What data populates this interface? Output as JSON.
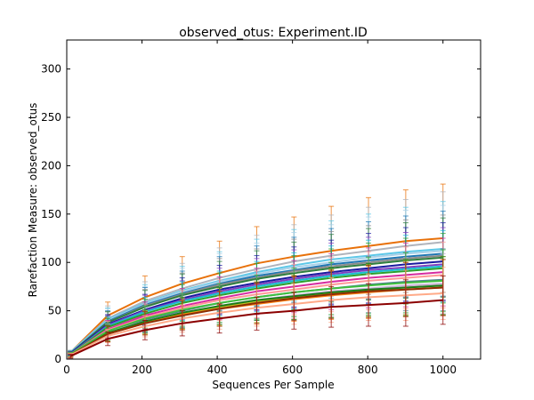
{
  "chart_data": {
    "type": "line",
    "title": "observed_otus: Experiment.ID",
    "xlabel": "Sequences Per Sample",
    "ylabel": "Rarefaction Measure: observed_otus",
    "xlim": [
      0,
      1100
    ],
    "ylim": [
      0,
      330
    ],
    "x_ticks": [
      0,
      200,
      400,
      600,
      800,
      1000
    ],
    "y_ticks": [
      0,
      50,
      100,
      150,
      200,
      250,
      300
    ],
    "grid": false,
    "legend": "none",
    "x": [
      10,
      109,
      208,
      307,
      406,
      505,
      604,
      703,
      802,
      901,
      1000
    ],
    "series": [
      {
        "color": "#e8710a",
        "values": [
          7,
          45,
          64,
          78,
          89,
          99,
          106,
          112,
          117,
          122,
          125
        ],
        "err": [
          2,
          14,
          22,
          28,
          33,
          38,
          41,
          46,
          50,
          53,
          56
        ]
      },
      {
        "color": "#b0b4bc",
        "values": [
          7,
          42,
          60,
          73,
          84,
          93,
          101,
          107,
          112,
          117,
          121
        ],
        "err": [
          2,
          13,
          20,
          26,
          31,
          35,
          38,
          42,
          45,
          48,
          52
        ]
      },
      {
        "color": "#5ec8e8",
        "values": [
          7,
          41,
          58,
          71,
          81,
          90,
          97,
          103,
          107,
          111,
          114
        ],
        "err": [
          2,
          12,
          19,
          25,
          30,
          34,
          37,
          40,
          43,
          46,
          49
        ]
      },
      {
        "color": "#a8d0e8",
        "values": [
          6,
          40,
          57,
          70,
          80,
          88,
          95,
          100,
          105,
          109,
          112
        ],
        "err": [
          2,
          12,
          18,
          24,
          29,
          32,
          36,
          39,
          42,
          45,
          47
        ]
      },
      {
        "color": "#1f77b4",
        "values": [
          6,
          39,
          56,
          68,
          78,
          86,
          92,
          98,
          102,
          106,
          109
        ],
        "err": [
          2,
          11,
          18,
          23,
          28,
          31,
          34,
          37,
          40,
          42,
          44
        ]
      },
      {
        "color": "#8a8a8a",
        "values": [
          6,
          38,
          55,
          67,
          77,
          84,
          91,
          96,
          100,
          104,
          107
        ],
        "err": [
          2,
          11,
          17,
          22,
          27,
          30,
          33,
          36,
          38,
          40,
          42
        ]
      },
      {
        "color": "#2f7f3f",
        "values": [
          6,
          38,
          54,
          66,
          75,
          83,
          89,
          94,
          98,
          102,
          105
        ],
        "err": [
          2,
          11,
          17,
          22,
          26,
          29,
          32,
          35,
          37,
          39,
          41
        ]
      },
      {
        "color": "#1a1aa0",
        "values": [
          6,
          36,
          51,
          63,
          72,
          79,
          85,
          90,
          94,
          98,
          101
        ],
        "err": [
          2,
          10,
          16,
          21,
          25,
          28,
          31,
          33,
          36,
          38,
          40
        ]
      },
      {
        "color": "#7f3fbf",
        "values": [
          5,
          35,
          50,
          61,
          70,
          77,
          83,
          88,
          92,
          95,
          98
        ],
        "err": [
          2,
          10,
          16,
          20,
          24,
          27,
          30,
          32,
          34,
          36,
          38
        ]
      },
      {
        "color": "#17becf",
        "values": [
          5,
          34,
          49,
          60,
          68,
          75,
          81,
          86,
          90,
          93,
          96
        ],
        "err": [
          2,
          10,
          15,
          20,
          23,
          26,
          29,
          31,
          33,
          35,
          37
        ]
      },
      {
        "color": "#2ca02c",
        "values": [
          5,
          33,
          47,
          58,
          66,
          73,
          79,
          84,
          88,
          91,
          94
        ],
        "err": [
          2,
          9,
          15,
          19,
          23,
          26,
          28,
          30,
          32,
          34,
          36
        ]
      },
      {
        "color": "#d62ba0",
        "values": [
          5,
          31,
          45,
          55,
          63,
          70,
          75,
          80,
          84,
          87,
          90
        ],
        "err": [
          2,
          9,
          14,
          18,
          22,
          24,
          27,
          29,
          31,
          33,
          35
        ]
      },
      {
        "color": "#ff9896",
        "values": [
          5,
          30,
          43,
          53,
          61,
          67,
          72,
          77,
          81,
          84,
          87
        ],
        "err": [
          2,
          9,
          14,
          18,
          21,
          24,
          26,
          28,
          30,
          32,
          34
        ]
      },
      {
        "color": "#4f7f8f",
        "values": [
          5,
          29,
          41,
          50,
          58,
          64,
          69,
          73,
          77,
          80,
          82
        ],
        "err": [
          2,
          8,
          13,
          17,
          20,
          22,
          25,
          27,
          29,
          30,
          32
        ]
      },
      {
        "color": "#c5b0d5",
        "values": [
          4,
          28,
          39,
          48,
          55,
          61,
          66,
          70,
          73,
          76,
          78
        ],
        "err": [
          2,
          8,
          12,
          16,
          19,
          21,
          24,
          26,
          28,
          29,
          31
        ]
      },
      {
        "color": "#3fbf3f",
        "values": [
          5,
          29,
          42,
          51,
          58,
          64,
          69,
          73,
          76,
          79,
          81
        ],
        "err": [
          2,
          8,
          13,
          17,
          20,
          23,
          25,
          27,
          29,
          31,
          32
        ]
      },
      {
        "color": "#bcbd22",
        "values": [
          4,
          27,
          38,
          47,
          54,
          59,
          64,
          68,
          71,
          74,
          76
        ],
        "err": [
          2,
          8,
          12,
          16,
          19,
          21,
          23,
          25,
          27,
          28,
          30
        ]
      },
      {
        "color": "#1a7a1a",
        "values": [
          4,
          27,
          39,
          48,
          55,
          61,
          65,
          69,
          72,
          74,
          76
        ],
        "err": [
          2,
          8,
          12,
          16,
          19,
          21,
          24,
          26,
          27,
          29,
          30
        ]
      },
      {
        "color": "#ff7f0e",
        "values": [
          4,
          26,
          37,
          46,
          52,
          57,
          62,
          66,
          69,
          72,
          74
        ],
        "err": [
          2,
          8,
          12,
          15,
          18,
          21,
          23,
          25,
          27,
          28,
          29
        ]
      },
      {
        "color": "#8c2d04",
        "values": [
          4,
          26,
          37,
          45,
          52,
          58,
          63,
          67,
          70,
          72,
          74
        ],
        "err": [
          2,
          8,
          12,
          15,
          18,
          21,
          23,
          25,
          27,
          28,
          29
        ]
      },
      {
        "color": "#ffaa88",
        "values": [
          4,
          24,
          34,
          42,
          48,
          53,
          57,
          61,
          64,
          66,
          68
        ],
        "err": [
          2,
          7,
          11,
          14,
          17,
          19,
          21,
          23,
          24,
          26,
          27
        ]
      },
      {
        "color": "#8b0000",
        "values": [
          3,
          21,
          30,
          37,
          42,
          47,
          50,
          54,
          56,
          58,
          61
        ],
        "err": [
          2,
          7,
          10,
          13,
          15,
          17,
          19,
          21,
          22,
          24,
          25
        ]
      }
    ]
  }
}
